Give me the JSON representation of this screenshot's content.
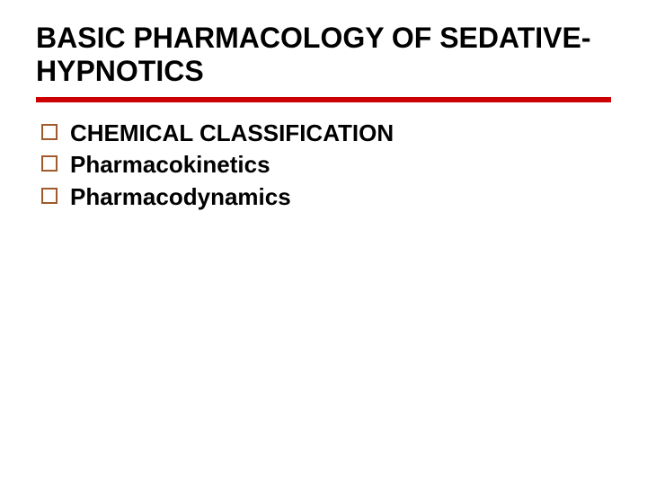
{
  "slide": {
    "title": "BASIC PHARMACOLOGY OF SEDATIVE-HYPNOTICS",
    "title_fontsize": 32,
    "title_color": "#000000",
    "divider_color": "#cc0000",
    "bullet_border_color": "#a05a2c",
    "bullet_text_fontsize": 26,
    "bullets": [
      {
        "label": "CHEMICAL CLASSIFICATION"
      },
      {
        "label": "Pharmacokinetics"
      },
      {
        "label": "Pharmacodynamics"
      }
    ],
    "background_color": "#ffffff"
  }
}
